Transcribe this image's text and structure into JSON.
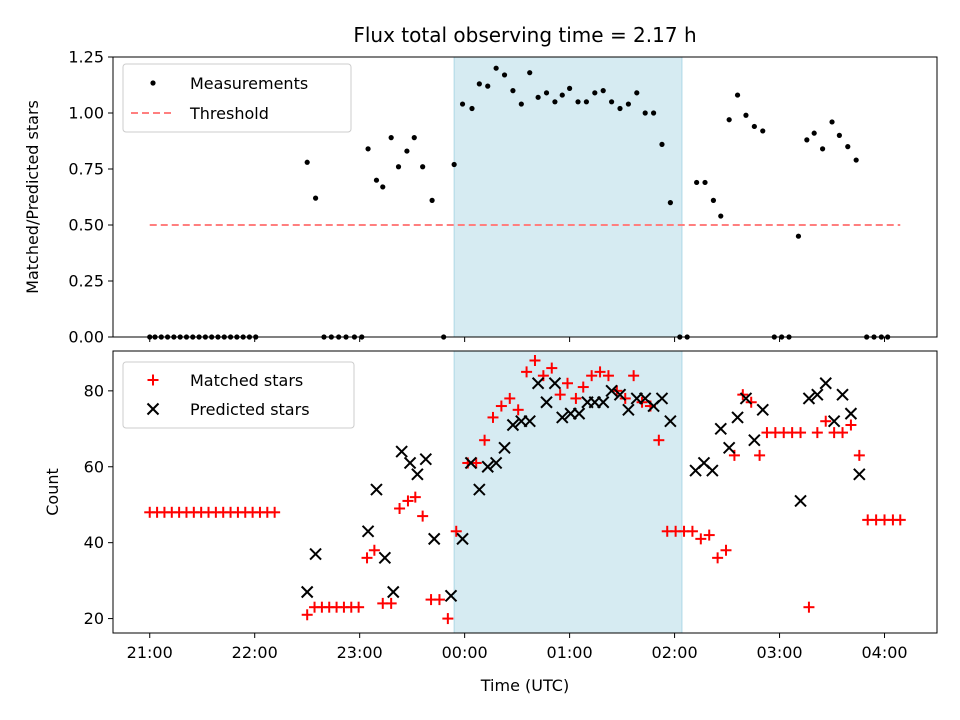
{
  "chart_data": [
    {
      "type": "scatter",
      "title": "Flux total observing time = 2.17 h",
      "xlabel": "",
      "ylabel": "Matched/Predicted stars",
      "ylim": [
        0,
        1.25
      ],
      "yticks": [
        0.0,
        0.25,
        0.5,
        0.75,
        1.0,
        1.25
      ],
      "ytick_labels": [
        "0.00",
        "0.25",
        "0.50",
        "0.75",
        "1.00",
        "1.25"
      ],
      "xlim_hours": [
        -3.35,
        4.5
      ],
      "xticks_hours": [
        -3,
        -2,
        -1,
        0,
        1,
        2,
        3,
        4
      ],
      "xtick_labels": [
        "21:00",
        "22:00",
        "23:00",
        "00:00",
        "01:00",
        "02:00",
        "03:00",
        "04:00"
      ],
      "show_xtick_labels": false,
      "legend_position": "upper left",
      "observing_window_hours": [
        -0.1,
        2.07
      ],
      "window_color": "#add8e6",
      "threshold": {
        "name": "Threshold",
        "value": 0.5,
        "x_range_hours": [
          -3.0,
          4.15
        ],
        "color": "#ff7f7f",
        "style": "dashed"
      },
      "series": [
        {
          "name": "Measurements",
          "marker": "dot",
          "color": "#000000",
          "points": [
            [
              -3.0,
              0
            ],
            [
              -2.95,
              0
            ],
            [
              -2.89,
              0
            ],
            [
              -2.83,
              0
            ],
            [
              -2.77,
              0
            ],
            [
              -2.71,
              0
            ],
            [
              -2.65,
              0
            ],
            [
              -2.59,
              0
            ],
            [
              -2.53,
              0
            ],
            [
              -2.47,
              0
            ],
            [
              -2.41,
              0
            ],
            [
              -2.35,
              0
            ],
            [
              -2.29,
              0
            ],
            [
              -2.23,
              0
            ],
            [
              -2.17,
              0
            ],
            [
              -2.11,
              0
            ],
            [
              -2.05,
              0
            ],
            [
              -1.99,
              0
            ],
            [
              -1.5,
              0.78
            ],
            [
              -1.42,
              0.62
            ],
            [
              -1.34,
              0
            ],
            [
              -1.27,
              0
            ],
            [
              -1.2,
              0
            ],
            [
              -1.13,
              0
            ],
            [
              -1.05,
              0
            ],
            [
              -0.98,
              0
            ],
            [
              -0.92,
              0.84
            ],
            [
              -0.84,
              0.7
            ],
            [
              -0.78,
              0.67
            ],
            [
              -0.7,
              0.89
            ],
            [
              -0.63,
              0.76
            ],
            [
              -0.55,
              0.83
            ],
            [
              -0.48,
              0.89
            ],
            [
              -0.4,
              0.76
            ],
            [
              -0.31,
              0.61
            ],
            [
              -0.2,
              0
            ],
            [
              -0.1,
              0.77
            ],
            [
              -0.02,
              1.04
            ],
            [
              0.07,
              1.02
            ],
            [
              0.14,
              1.13
            ],
            [
              0.22,
              1.12
            ],
            [
              0.3,
              1.2
            ],
            [
              0.38,
              1.17
            ],
            [
              0.46,
              1.1
            ],
            [
              0.54,
              1.04
            ],
            [
              0.62,
              1.18
            ],
            [
              0.7,
              1.07
            ],
            [
              0.78,
              1.09
            ],
            [
              0.86,
              1.05
            ],
            [
              0.93,
              1.08
            ],
            [
              1.0,
              1.11
            ],
            [
              1.08,
              1.05
            ],
            [
              1.16,
              1.05
            ],
            [
              1.24,
              1.09
            ],
            [
              1.32,
              1.1
            ],
            [
              1.4,
              1.05
            ],
            [
              1.48,
              1.02
            ],
            [
              1.56,
              1.04
            ],
            [
              1.64,
              1.09
            ],
            [
              1.72,
              1.0
            ],
            [
              1.8,
              1.0
            ],
            [
              1.88,
              0.86
            ],
            [
              1.96,
              0.6
            ],
            [
              2.05,
              0
            ],
            [
              2.12,
              0
            ],
            [
              2.21,
              0.69
            ],
            [
              2.29,
              0.69
            ],
            [
              2.37,
              0.61
            ],
            [
              2.44,
              0.54
            ],
            [
              2.52,
              0.97
            ],
            [
              2.6,
              1.08
            ],
            [
              2.68,
              0.99
            ],
            [
              2.76,
              0.94
            ],
            [
              2.84,
              0.92
            ],
            [
              2.95,
              0
            ],
            [
              3.02,
              0
            ],
            [
              3.09,
              0
            ],
            [
              3.18,
              0.45
            ],
            [
              3.26,
              0.88
            ],
            [
              3.33,
              0.91
            ],
            [
              3.41,
              0.84
            ],
            [
              3.5,
              0.96
            ],
            [
              3.57,
              0.9
            ],
            [
              3.65,
              0.85
            ],
            [
              3.73,
              0.79
            ],
            [
              3.83,
              0
            ],
            [
              3.9,
              0
            ],
            [
              3.97,
              0
            ],
            [
              4.03,
              0
            ]
          ]
        }
      ]
    },
    {
      "type": "scatter",
      "title": "",
      "xlabel": "Time (UTC)",
      "ylabel": "Count",
      "ylim": [
        16.2,
        90.5
      ],
      "yticks": [
        20,
        40,
        60,
        80
      ],
      "ytick_labels": [
        "20",
        "40",
        "60",
        "80"
      ],
      "xlim_hours": [
        -3.35,
        4.5
      ],
      "xticks_hours": [
        -3,
        -2,
        -1,
        0,
        1,
        2,
        3,
        4
      ],
      "xtick_labels": [
        "21:00",
        "22:00",
        "23:00",
        "00:00",
        "01:00",
        "02:00",
        "03:00",
        "04:00"
      ],
      "show_xtick_labels": true,
      "legend_position": "upper left",
      "observing_window_hours": [
        -0.1,
        2.07
      ],
      "window_color": "#add8e6",
      "series": [
        {
          "name": "Matched stars",
          "marker": "plus",
          "color": "#ff0000",
          "points": [
            [
              -3.0,
              48
            ],
            [
              -2.93,
              48
            ],
            [
              -2.86,
              48
            ],
            [
              -2.79,
              48
            ],
            [
              -2.72,
              48
            ],
            [
              -2.65,
              48
            ],
            [
              -2.58,
              48
            ],
            [
              -2.51,
              48
            ],
            [
              -2.44,
              48
            ],
            [
              -2.37,
              48
            ],
            [
              -2.3,
              48
            ],
            [
              -2.23,
              48
            ],
            [
              -2.16,
              48
            ],
            [
              -2.09,
              48
            ],
            [
              -2.02,
              48
            ],
            [
              -1.95,
              48
            ],
            [
              -1.88,
              48
            ],
            [
              -1.81,
              48
            ],
            [
              -1.5,
              21
            ],
            [
              -1.43,
              23
            ],
            [
              -1.36,
              23
            ],
            [
              -1.29,
              23
            ],
            [
              -1.22,
              23
            ],
            [
              -1.15,
              23
            ],
            [
              -1.08,
              23
            ],
            [
              -1.01,
              23
            ],
            [
              -0.93,
              36
            ],
            [
              -0.86,
              38
            ],
            [
              -0.78,
              24
            ],
            [
              -0.7,
              24
            ],
            [
              -0.62,
              49
            ],
            [
              -0.54,
              51
            ],
            [
              -0.47,
              52
            ],
            [
              -0.4,
              47
            ],
            [
              -0.32,
              25
            ],
            [
              -0.24,
              25
            ],
            [
              -0.16,
              20
            ],
            [
              -0.08,
              43
            ],
            [
              0.03,
              61
            ],
            [
              0.11,
              61
            ],
            [
              0.19,
              67
            ],
            [
              0.27,
              73
            ],
            [
              0.35,
              76
            ],
            [
              0.43,
              78
            ],
            [
              0.51,
              75
            ],
            [
              0.59,
              85
            ],
            [
              0.67,
              88
            ],
            [
              0.75,
              84
            ],
            [
              0.83,
              86
            ],
            [
              0.91,
              79
            ],
            [
              0.98,
              82
            ],
            [
              1.06,
              78
            ],
            [
              1.13,
              81
            ],
            [
              1.21,
              84
            ],
            [
              1.29,
              85
            ],
            [
              1.37,
              84
            ],
            [
              1.45,
              80
            ],
            [
              1.53,
              78
            ],
            [
              1.61,
              84
            ],
            [
              1.69,
              77
            ],
            [
              1.77,
              76
            ],
            [
              1.85,
              67
            ],
            [
              1.93,
              43
            ],
            [
              2.01,
              43
            ],
            [
              2.09,
              43
            ],
            [
              2.17,
              43
            ],
            [
              2.25,
              41
            ],
            [
              2.33,
              42
            ],
            [
              2.41,
              36
            ],
            [
              2.49,
              38
            ],
            [
              2.57,
              63
            ],
            [
              2.65,
              79
            ],
            [
              2.73,
              77
            ],
            [
              2.81,
              63
            ],
            [
              2.88,
              69
            ],
            [
              2.96,
              69
            ],
            [
              3.04,
              69
            ],
            [
              3.12,
              69
            ],
            [
              3.2,
              69
            ],
            [
              3.28,
              23
            ],
            [
              3.36,
              69
            ],
            [
              3.44,
              72
            ],
            [
              3.52,
              69
            ],
            [
              3.6,
              69
            ],
            [
              3.68,
              71
            ],
            [
              3.76,
              63
            ],
            [
              3.84,
              46
            ],
            [
              3.92,
              46
            ],
            [
              4.0,
              46
            ],
            [
              4.08,
              46
            ],
            [
              4.15,
              46
            ]
          ]
        },
        {
          "name": "Predicted stars",
          "marker": "x",
          "color": "#000000",
          "points": [
            [
              -1.5,
              27
            ],
            [
              -1.42,
              37
            ],
            [
              -0.92,
              43
            ],
            [
              -0.84,
              54
            ],
            [
              -0.76,
              36
            ],
            [
              -0.68,
              27
            ],
            [
              -0.6,
              64
            ],
            [
              -0.52,
              61
            ],
            [
              -0.45,
              58
            ],
            [
              -0.37,
              62
            ],
            [
              -0.29,
              41
            ],
            [
              -0.13,
              26
            ],
            [
              -0.02,
              41
            ],
            [
              0.06,
              61
            ],
            [
              0.14,
              54
            ],
            [
              0.22,
              60
            ],
            [
              0.3,
              61
            ],
            [
              0.38,
              65
            ],
            [
              0.46,
              71
            ],
            [
              0.54,
              72
            ],
            [
              0.62,
              72
            ],
            [
              0.7,
              82
            ],
            [
              0.78,
              77
            ],
            [
              0.86,
              82
            ],
            [
              0.93,
              73
            ],
            [
              1.01,
              74
            ],
            [
              1.09,
              74
            ],
            [
              1.17,
              77
            ],
            [
              1.24,
              77
            ],
            [
              1.32,
              77
            ],
            [
              1.4,
              80
            ],
            [
              1.48,
              79
            ],
            [
              1.56,
              75
            ],
            [
              1.64,
              78
            ],
            [
              1.72,
              78
            ],
            [
              1.8,
              76
            ],
            [
              1.88,
              78
            ],
            [
              1.96,
              72
            ],
            [
              2.2,
              59
            ],
            [
              2.28,
              61
            ],
            [
              2.36,
              59
            ],
            [
              2.44,
              70
            ],
            [
              2.52,
              65
            ],
            [
              2.6,
              73
            ],
            [
              2.68,
              78
            ],
            [
              2.76,
              67
            ],
            [
              2.84,
              75
            ],
            [
              3.2,
              51
            ],
            [
              3.28,
              78
            ],
            [
              3.36,
              79
            ],
            [
              3.44,
              82
            ],
            [
              3.52,
              72
            ],
            [
              3.6,
              79
            ],
            [
              3.68,
              74
            ],
            [
              3.76,
              58
            ]
          ]
        }
      ]
    }
  ]
}
